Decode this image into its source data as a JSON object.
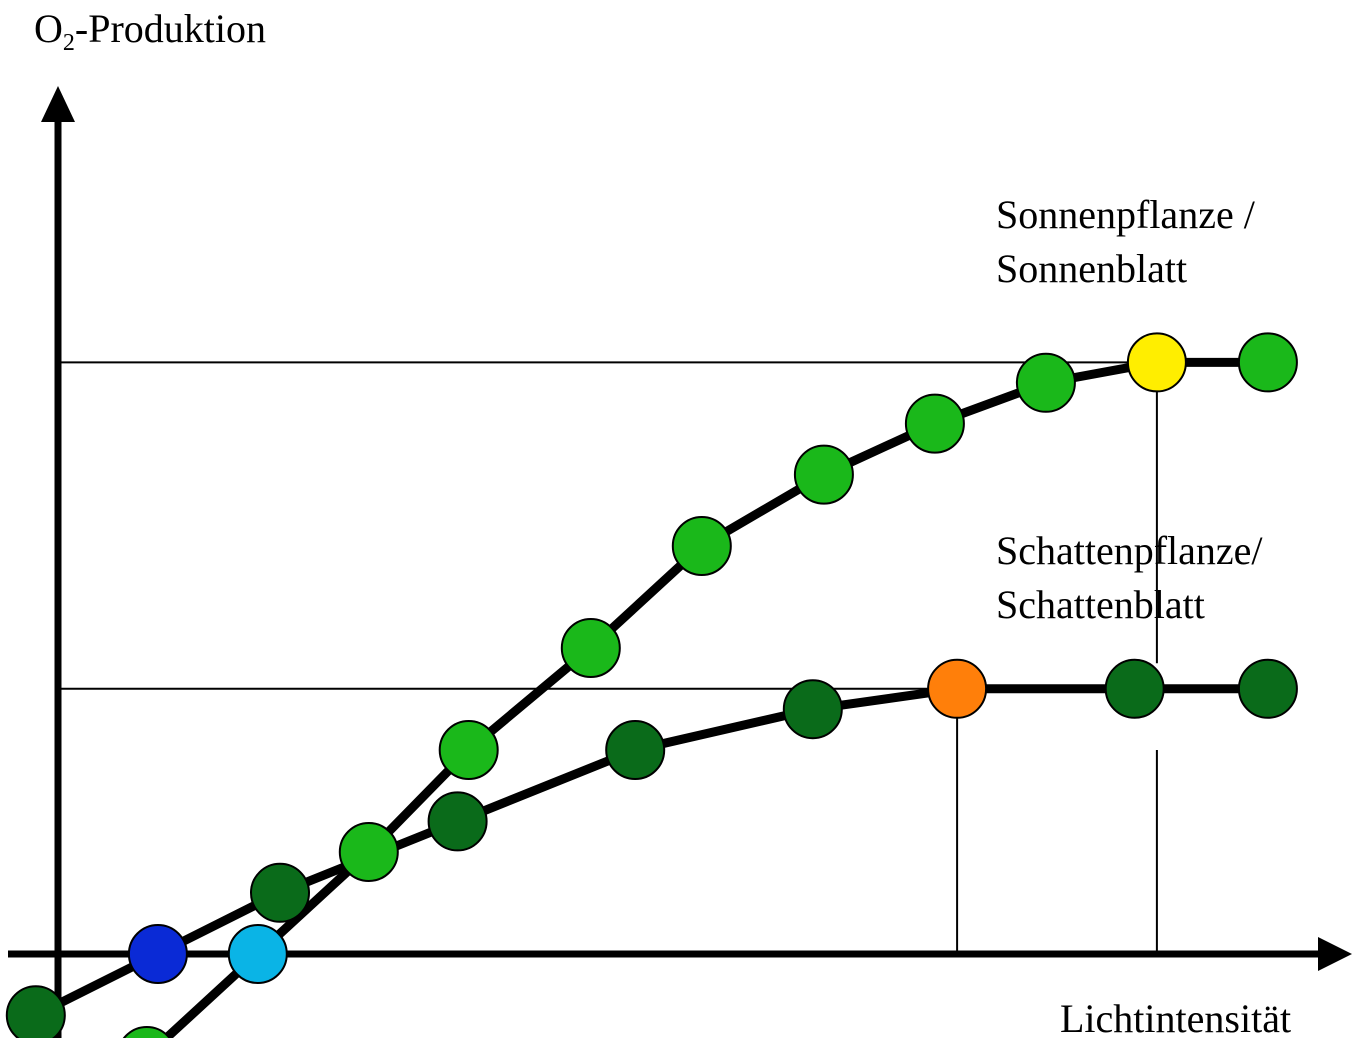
{
  "chart_data": {
    "type": "line",
    "ylabel_main": "O",
    "ylabel_sub": "2",
    "ylabel_rest": "-Produktion",
    "xlabel": "Lichtintensität",
    "colors": {
      "sun_point": "#1ab81a",
      "shade_point": "#0a6b1a",
      "shade_compensation": "#0a2ad6",
      "sun_compensation": "#0ab4e6",
      "sun_saturation": "#ffee00",
      "shade_saturation": "#ff7f0a",
      "line": "#000000"
    },
    "series": [
      {
        "name_line1": "Sonnenpflanze /",
        "name_line2": "Sonnenblatt",
        "points": [
          {
            "x": 0.8,
            "y": -1.0
          },
          {
            "x": 1.8,
            "y": 0.0,
            "role": "compensation"
          },
          {
            "x": 2.8,
            "y": 1.0
          },
          {
            "x": 3.7,
            "y": 2.0
          },
          {
            "x": 4.8,
            "y": 3.0
          },
          {
            "x": 5.8,
            "y": 4.0
          },
          {
            "x": 6.9,
            "y": 4.7
          },
          {
            "x": 7.9,
            "y": 5.2
          },
          {
            "x": 8.9,
            "y": 5.6
          },
          {
            "x": 9.9,
            "y": 5.8,
            "role": "saturation"
          },
          {
            "x": 10.9,
            "y": 5.8
          }
        ]
      },
      {
        "name_line1": "Schattenpflanze/",
        "name_line2": "Schattenblatt",
        "points": [
          {
            "x": -0.2,
            "y": -0.6
          },
          {
            "x": 0.9,
            "y": 0.0,
            "role": "compensation"
          },
          {
            "x": 2.0,
            "y": 0.6
          },
          {
            "x": 3.6,
            "y": 1.3
          },
          {
            "x": 5.2,
            "y": 2.0
          },
          {
            "x": 6.8,
            "y": 2.4
          },
          {
            "x": 8.1,
            "y": 2.6,
            "role": "saturation"
          },
          {
            "x": 9.7,
            "y": 2.6
          },
          {
            "x": 10.9,
            "y": 2.6
          }
        ]
      }
    ],
    "reference_lines": {
      "sun_saturation_level": 5.8,
      "shade_saturation_level": 2.6,
      "sun_saturation_x": 9.9,
      "shade_saturation_x": 8.1
    },
    "grid": false,
    "axes_arrows": true,
    "xlim": [
      -0.45,
      11.65
    ],
    "ylim": [
      -1.3,
      8.1
    ]
  }
}
